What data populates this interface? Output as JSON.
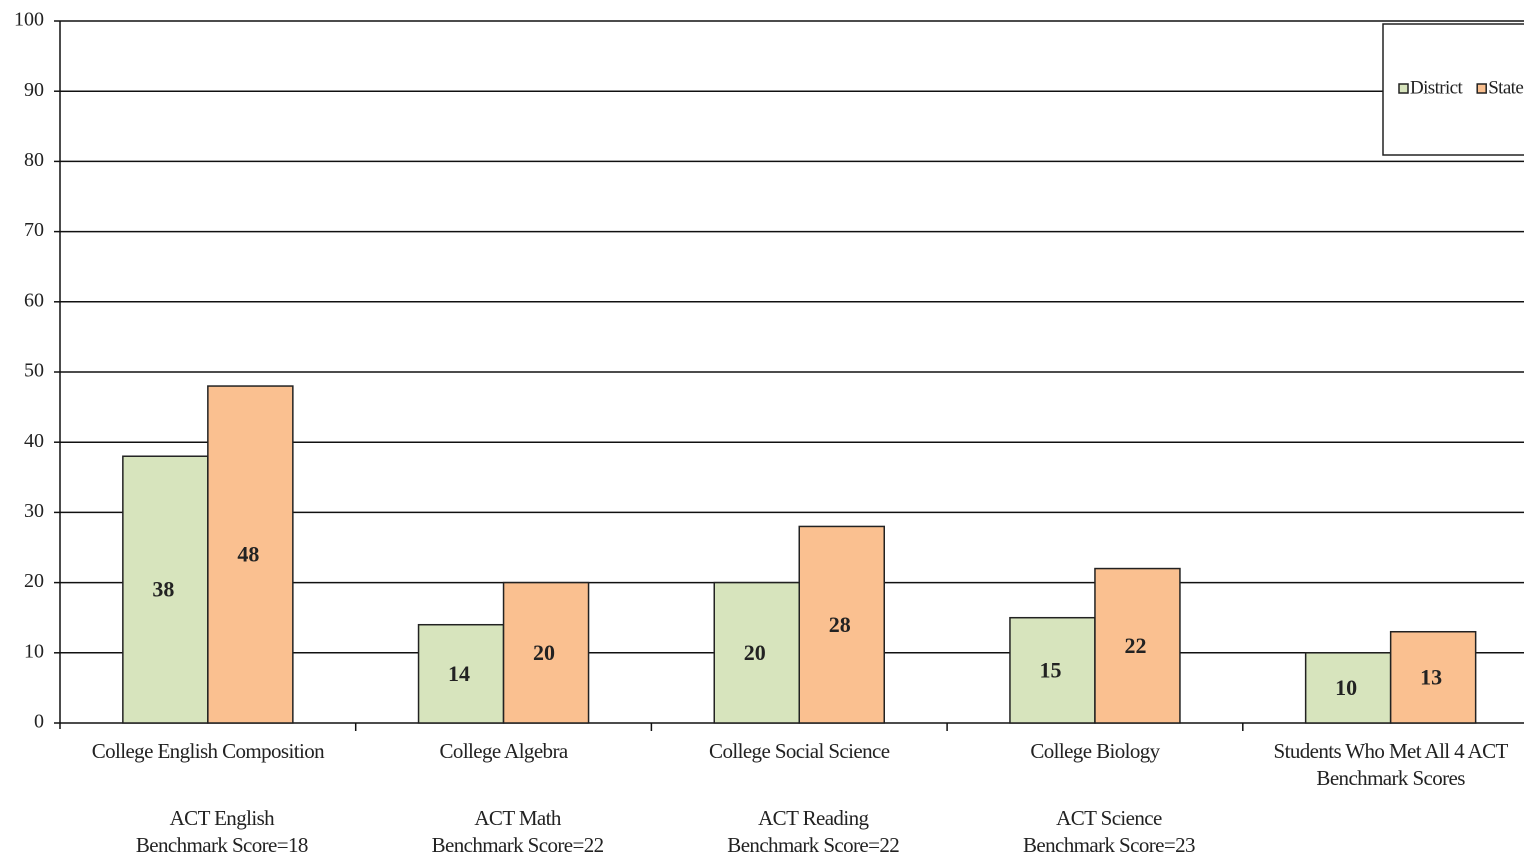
{
  "chart_data": {
    "type": "bar",
    "categories": [
      "College English Composition",
      "College Algebra",
      "College Social Science",
      "College Biology",
      "Students Who Met All 4 ACT Benchmark Scores"
    ],
    "benchmarks": [
      {
        "test": "ACT English",
        "score": "Benchmark Score=18"
      },
      {
        "test": "ACT Math",
        "score": "Benchmark Score=22"
      },
      {
        "test": "ACT Reading",
        "score": "Benchmark Score=22"
      },
      {
        "test": "ACT Science",
        "score": "Benchmark Score=23"
      }
    ],
    "series": [
      {
        "name": "District",
        "color": "#d7e4bd",
        "values": [
          38,
          14,
          20,
          15,
          10
        ]
      },
      {
        "name": "State",
        "color": "#fac090",
        "values": [
          48,
          20,
          28,
          22,
          13
        ]
      }
    ],
    "ylim": [
      0,
      100
    ],
    "yticks": [
      0,
      10,
      20,
      30,
      40,
      50,
      60,
      70,
      80,
      90,
      100
    ],
    "grid": true,
    "legend": "top-right"
  }
}
